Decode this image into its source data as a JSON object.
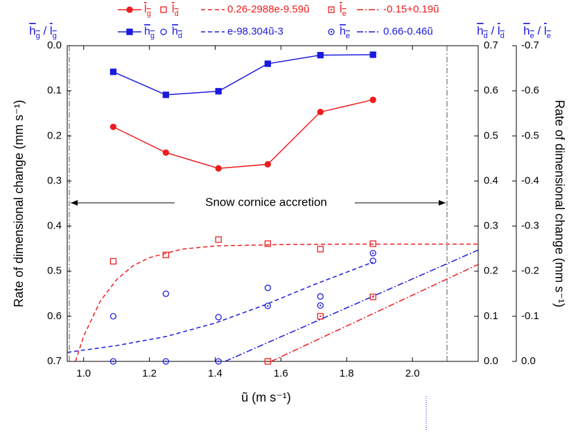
{
  "chart_data": {
    "type": "line",
    "x_label": "ũ (m s⁻¹)",
    "y_label": "Rate of dimensional change  (mm s⁻¹)",
    "y2_label": "Rate of dimensional change (mm s⁻¹)",
    "y_header": "hg / lg",
    "y2_header": "hd / ld",
    "y3_header": "he / le",
    "annotation": "Snow cornice accretion",
    "xlim": [
      0.95,
      2.2
    ],
    "xticks": [
      {
        "value": 1,
        "label": "1.0"
      },
      1.2,
      1.4,
      1.6,
      1.8,
      {
        "value": 2,
        "label": "2.0"
      }
    ],
    "ylim": [
      0.7,
      0
    ],
    "yticks": [
      {
        "value": 0,
        "label": "0.0"
      },
      0.1,
      0.2,
      0.3,
      0.4,
      0.5,
      0.6,
      0.7
    ],
    "y2lim": [
      0,
      0.7
    ],
    "y2ticks": [
      {
        "value": 0,
        "label": "0.0"
      },
      0.1,
      0.2,
      0.3,
      0.4,
      0.5,
      0.6,
      0.7
    ],
    "y3lim": [
      0,
      -0.7
    ],
    "y3ticks": [
      {
        "value": 0,
        "label": "0.0"
      },
      -0.1,
      -0.2,
      -0.3,
      -0.4,
      -0.5,
      -0.6,
      -0.7
    ],
    "series": [
      {
        "name": "lg",
        "color": "#ee1c1c",
        "style": "line",
        "marker": "circle-filled",
        "axis": "y",
        "x": [
          1.09,
          1.25,
          1.41,
          1.56,
          1.72,
          1.88
        ],
        "values": [
          0.18,
          0.237,
          0.272,
          0.263,
          0.147,
          0.12
        ]
      },
      {
        "name": "ld",
        "color": "#ee1c1c",
        "style": "none",
        "marker": "square",
        "axis": "y2",
        "x": [
          1.09,
          1.25,
          1.41,
          1.56,
          1.72,
          1.88
        ],
        "values": [
          0.222,
          0.236,
          0.27,
          0.261,
          0.249,
          0.261
        ]
      },
      {
        "name": "0.26-2988e-9.59ũ",
        "color": "#ee1c1c",
        "style": "dashed",
        "marker": "none",
        "axis": "y2",
        "x": [
          0.975,
          1.0,
          1.05,
          1.1,
          1.15,
          1.2,
          1.3,
          1.4,
          1.6,
          1.8,
          2.2
        ],
        "values": [
          0.0,
          0.056,
          0.133,
          0.181,
          0.212,
          0.23,
          0.249,
          0.256,
          0.259,
          0.26,
          0.26
        ]
      },
      {
        "name": "le",
        "color": "#ee1c1c",
        "style": "none",
        "marker": "square-dot",
        "axis": "y3",
        "x": [
          1.09,
          1.25,
          1.41,
          1.56,
          1.72,
          1.88
        ],
        "values": [
          null,
          null,
          null,
          0.0,
          -0.1,
          -0.143
        ]
      },
      {
        "name": "-0.15+0.19ũ",
        "color": "#ee1c1c",
        "style": "dash-dot",
        "marker": "none",
        "axis": "y3",
        "x": [
          1.57,
          2.2
        ],
        "values": [
          0.0,
          -0.215
        ]
      },
      {
        "name": "hg",
        "color": "#1a1adf",
        "style": "line",
        "marker": "square-filled",
        "axis": "y",
        "x": [
          1.09,
          1.25,
          1.41,
          1.56,
          1.72,
          1.88
        ],
        "values": [
          0.058,
          0.109,
          0.101,
          0.04,
          0.021,
          0.02
        ]
      },
      {
        "name": "hd",
        "color": "#1a1adf",
        "style": "none",
        "marker": "circle",
        "axis": "y2",
        "x": [
          1.09,
          1.25,
          1.41,
          1.56,
          1.72,
          1.88
        ],
        "values": [
          0.1,
          0.15,
          0.098,
          0.163,
          0.144,
          0.223
        ]
      },
      {
        "name": "e-98.304ũ-3",
        "color": "#1a1adf",
        "style": "dashed",
        "marker": "none",
        "axis": "y2",
        "x": [
          0.95,
          1.1,
          1.25,
          1.4,
          1.55,
          1.7,
          1.88
        ],
        "values": [
          0.02,
          0.035,
          0.055,
          0.085,
          0.125,
          0.17,
          0.22
        ]
      },
      {
        "name": "he",
        "color": "#1a1adf",
        "style": "none",
        "marker": "circle-dot",
        "axis": "y3",
        "x": [
          1.09,
          1.25,
          1.41,
          1.56,
          1.72,
          1.88
        ],
        "values": [
          0.0,
          0.0,
          0.0,
          -0.123,
          -0.124,
          -0.24
        ]
      },
      {
        "name": "0.66-0.46ũ",
        "color": "#1a1adf",
        "style": "dash-dot",
        "marker": "none",
        "axis": "y3",
        "x": [
          1.43,
          2.2
        ],
        "values": [
          0.0,
          -0.247
        ]
      }
    ]
  }
}
